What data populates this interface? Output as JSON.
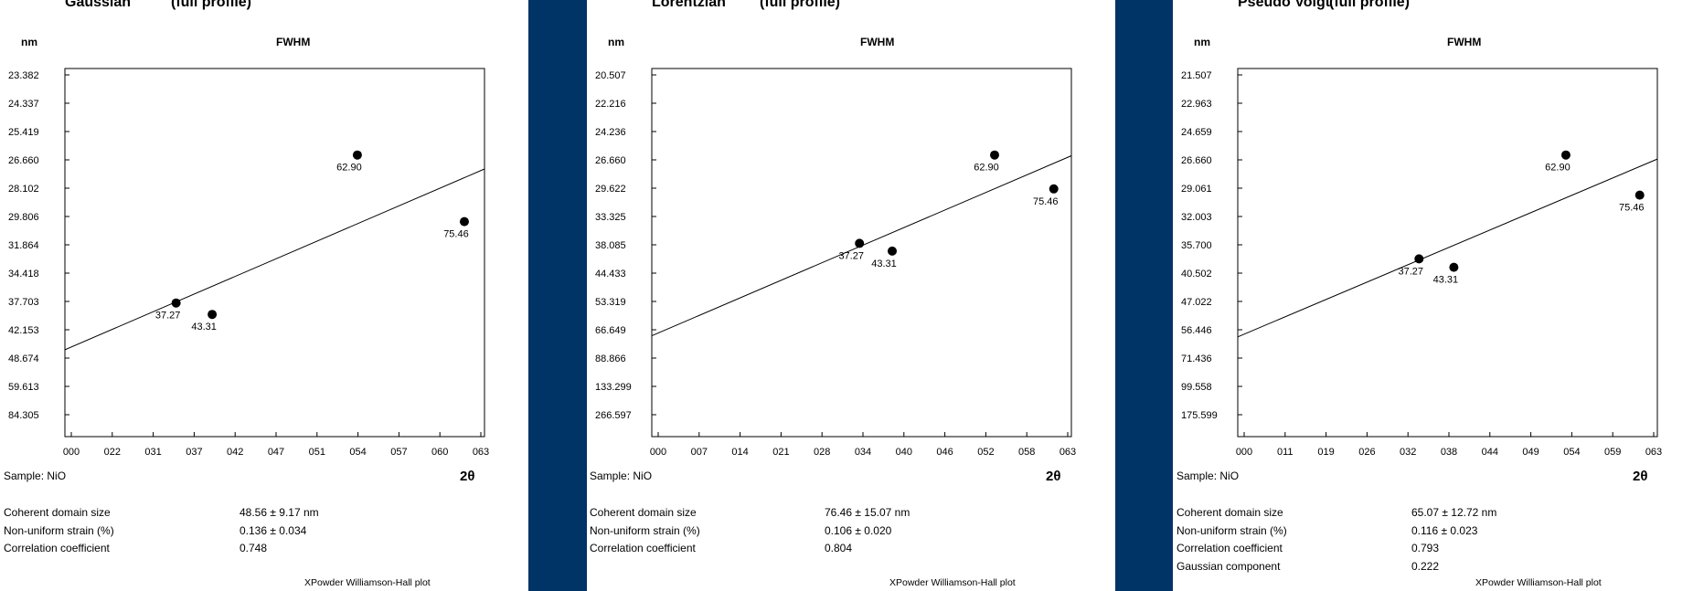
{
  "colors": {
    "divider": "#003366",
    "line": "#000000"
  },
  "panels": [
    {
      "profile": "Gaussian",
      "profile_note": "(full profile)",
      "y_unit": "nm",
      "subtitle": "FWHM",
      "sample": "Sample: NiO",
      "x_symbol": "2θ",
      "stats": [
        {
          "label": "Coherent domain size",
          "value": "48.56 ± 9.17 nm"
        },
        {
          "label": "Non-uniform strain (%)",
          "value": "0.136 ± 0.034"
        },
        {
          "label": "Correlation coefficient",
          "value": "0.748"
        }
      ],
      "footer": "XPowder Williamson-Hall plot"
    },
    {
      "profile": "Lorentzian",
      "profile_note": "(full profile)",
      "y_unit": "nm",
      "subtitle": "FWHM",
      "sample": "Sample: NiO",
      "x_symbol": "2θ",
      "stats": [
        {
          "label": "Coherent domain size",
          "value": "76.46 ± 15.07 nm"
        },
        {
          "label": "Non-uniform strain (%)",
          "value": "0.106 ± 0.020"
        },
        {
          "label": "Correlation coefficient",
          "value": "0.804"
        }
      ],
      "footer": "XPowder Williamson-Hall plot"
    },
    {
      "profile": "Pseudo Voigt",
      "profile_note": "(full profile)",
      "y_unit": "nm",
      "subtitle": "FWHM",
      "sample": "Sample: NiO",
      "x_symbol": "2θ",
      "stats": [
        {
          "label": "Coherent domain size",
          "value": "65.07 ± 12.72 nm"
        },
        {
          "label": "Non-uniform strain (%)",
          "value": "0.116 ± 0.023"
        },
        {
          "label": "Correlation coefficient",
          "value": "0.793"
        },
        {
          "label": "Gaussian component",
          "value": "0.222"
        }
      ],
      "footer": "XPowder Williamson-Hall plot"
    }
  ],
  "chart_data": [
    {
      "type": "scatter",
      "title": "Gaussian (full profile)",
      "subtitle": "FWHM",
      "ylabel": "nm",
      "xlabel": "2θ",
      "x_tick_labels": [
        "000",
        "022",
        "031",
        "037",
        "042",
        "047",
        "051",
        "054",
        "057",
        "060",
        "063"
      ],
      "y_tick_labels": [
        "23.382",
        "24.337",
        "25.419",
        "26.660",
        "28.102",
        "29.806",
        "31.864",
        "34.418",
        "37.703",
        "42.153",
        "48.674",
        "59.613",
        "84.305"
      ],
      "points": [
        {
          "label": "37.27",
          "x": 0.265,
          "y": 0.637
        },
        {
          "label": "43.31",
          "x": 0.351,
          "y": 0.668
        },
        {
          "label": "62.90",
          "x": 0.697,
          "y": 0.235
        },
        {
          "label": "75.46",
          "x": 0.952,
          "y": 0.416
        }
      ],
      "fit_line": {
        "y_at_left": 0.764,
        "y_at_right": 0.273
      },
      "xlim": [
        0,
        1
      ],
      "ylim": [
        0,
        1
      ],
      "grid": false,
      "legend": "none"
    },
    {
      "type": "scatter",
      "title": "Lorentzian (full profile)",
      "subtitle": "FWHM",
      "ylabel": "nm",
      "xlabel": "2θ",
      "x_tick_labels": [
        "000",
        "007",
        "014",
        "021",
        "028",
        "034",
        "040",
        "046",
        "052",
        "058",
        "063"
      ],
      "y_tick_labels": [
        "20.507",
        "22.216",
        "24.236",
        "26.660",
        "29.622",
        "33.325",
        "38.085",
        "44.433",
        "53.319",
        "66.649",
        "88.866",
        "133.299",
        "266.597"
      ],
      "points": [
        {
          "label": "37.27",
          "x": 0.495,
          "y": 0.475
        },
        {
          "label": "43.31",
          "x": 0.573,
          "y": 0.496
        },
        {
          "label": "62.90",
          "x": 0.817,
          "y": 0.235
        },
        {
          "label": "75.46",
          "x": 0.958,
          "y": 0.327
        }
      ],
      "fit_line": {
        "y_at_left": 0.726,
        "y_at_right": 0.237
      },
      "xlim": [
        0,
        1
      ],
      "ylim": [
        0,
        1
      ],
      "grid": false,
      "legend": "none"
    },
    {
      "type": "scatter",
      "title": "Pseudo Voigt (full profile)",
      "subtitle": "FWHM",
      "ylabel": "nm",
      "xlabel": "2θ",
      "x_tick_labels": [
        "000",
        "011",
        "019",
        "026",
        "032",
        "038",
        "044",
        "049",
        "054",
        "059",
        "063"
      ],
      "y_tick_labels": [
        "21.507",
        "22.963",
        "24.659",
        "26.660",
        "29.061",
        "32.003",
        "35.700",
        "40.502",
        "47.022",
        "56.446",
        "71.436",
        "99.558",
        "175.599"
      ],
      "points": [
        {
          "label": "37.27",
          "x": 0.432,
          "y": 0.517
        },
        {
          "label": "43.31",
          "x": 0.515,
          "y": 0.54
        },
        {
          "label": "62.90",
          "x": 0.782,
          "y": 0.235
        },
        {
          "label": "75.46",
          "x": 0.958,
          "y": 0.344
        }
      ],
      "fit_line": {
        "y_at_left": 0.729,
        "y_at_right": 0.246
      },
      "xlim": [
        0,
        1
      ],
      "ylim": [
        0,
        1
      ],
      "grid": false,
      "legend": "none"
    }
  ]
}
